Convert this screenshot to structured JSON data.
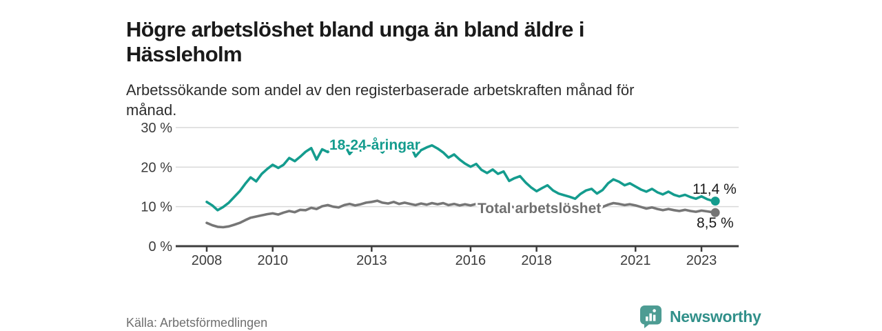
{
  "header": {
    "title": "Högre arbetslöshet bland unga än bland äldre i Hässleholm",
    "subtitle": "Arbetssökande som andel av den registerbaserade arbetskraften månad för månad."
  },
  "footer": {
    "source": "Källa: Arbetsförmedlingen"
  },
  "brand": {
    "name": "Newsworthy",
    "icon": "newsworthy-speech-bubble-bar-chart-icon",
    "text_color": "#31908a",
    "icon_color": "#4d9c93"
  },
  "chart_data": {
    "type": "line",
    "title": "Högre arbetslöshet bland unga än bland äldre i Hässleholm",
    "subtitle": "Arbetssökande som andel av den registerbaserade arbetskraften månad för månad.",
    "xlabel": "",
    "ylabel": "",
    "ylim": [
      0,
      30
    ],
    "xlim": [
      2007.1,
      2024.1
    ],
    "grid": "horizontal",
    "grid_color": "#d9d9d9",
    "axis_color": "#3d3d3d",
    "y_ticks": [
      {
        "label": "30 %",
        "value": 30
      },
      {
        "label": "20 %",
        "value": 20
      },
      {
        "label": "10 %",
        "value": 10
      },
      {
        "label": "0 %",
        "value": 0
      }
    ],
    "x_ticks": [
      {
        "label": "2008",
        "value": 2008
      },
      {
        "label": "2010",
        "value": 2010
      },
      {
        "label": "2013",
        "value": 2013
      },
      {
        "label": "2016",
        "value": 2016
      },
      {
        "label": "2018",
        "value": 2018
      },
      {
        "label": "2021",
        "value": 2021
      },
      {
        "label": "2023",
        "value": 2023
      }
    ],
    "legend_position": "inline-labels-on-lines",
    "series": [
      {
        "name": "18-24-åringar",
        "color": "#149c8e",
        "end_label": "11,4 %",
        "end_value": 11.4,
        "points": [
          [
            2008,
            11.2
          ],
          [
            2008.17,
            10.3
          ],
          [
            2008.33,
            9.1
          ],
          [
            2008.5,
            9.9
          ],
          [
            2008.67,
            11
          ],
          [
            2008.83,
            12.4
          ],
          [
            2009,
            13.9
          ],
          [
            2009.17,
            15.8
          ],
          [
            2009.33,
            17.4
          ],
          [
            2009.5,
            16.4
          ],
          [
            2009.67,
            18.3
          ],
          [
            2009.83,
            19.5
          ],
          [
            2010,
            20.6
          ],
          [
            2010.17,
            19.8
          ],
          [
            2010.33,
            20.6
          ],
          [
            2010.5,
            22.3
          ],
          [
            2010.67,
            21.5
          ],
          [
            2010.83,
            22.6
          ],
          [
            2011,
            23.9
          ],
          [
            2011.17,
            24.8
          ],
          [
            2011.33,
            21.9
          ],
          [
            2011.5,
            24.5
          ],
          [
            2011.67,
            23.8
          ],
          [
            2011.83,
            25.3
          ],
          [
            2012,
            25.1
          ],
          [
            2012.17,
            25.9
          ],
          [
            2012.33,
            23.3
          ],
          [
            2012.5,
            24.9
          ],
          [
            2012.67,
            24.2
          ],
          [
            2012.83,
            25.3
          ],
          [
            2013,
            26
          ],
          [
            2013.17,
            24.9
          ],
          [
            2013.33,
            23.7
          ],
          [
            2013.5,
            25.3
          ],
          [
            2013.67,
            24.5
          ],
          [
            2013.83,
            25.4
          ],
          [
            2014,
            24.8
          ],
          [
            2014.17,
            25.6
          ],
          [
            2014.33,
            22.7
          ],
          [
            2014.5,
            24.3
          ],
          [
            2014.67,
            25
          ],
          [
            2014.83,
            25.5
          ],
          [
            2015,
            24.7
          ],
          [
            2015.17,
            23.7
          ],
          [
            2015.33,
            22.4
          ],
          [
            2015.5,
            23.2
          ],
          [
            2015.67,
            21.9
          ],
          [
            2015.83,
            20.9
          ],
          [
            2016,
            20.1
          ],
          [
            2016.17,
            20.8
          ],
          [
            2016.33,
            19.3
          ],
          [
            2016.5,
            18.5
          ],
          [
            2016.67,
            19.4
          ],
          [
            2016.83,
            18.3
          ],
          [
            2017,
            18.9
          ],
          [
            2017.17,
            16.5
          ],
          [
            2017.33,
            17.2
          ],
          [
            2017.5,
            17.7
          ],
          [
            2017.67,
            16.1
          ],
          [
            2017.83,
            14.9
          ],
          [
            2018,
            13.9
          ],
          [
            2018.17,
            14.7
          ],
          [
            2018.33,
            15.4
          ],
          [
            2018.5,
            14.1
          ],
          [
            2018.67,
            13.3
          ],
          [
            2018.83,
            12.9
          ],
          [
            2019,
            12.5
          ],
          [
            2019.17,
            12
          ],
          [
            2019.33,
            13.2
          ],
          [
            2019.5,
            14.1
          ],
          [
            2019.67,
            14.5
          ],
          [
            2019.83,
            13.3
          ],
          [
            2020,
            14.2
          ],
          [
            2020.17,
            15.9
          ],
          [
            2020.33,
            16.9
          ],
          [
            2020.5,
            16.3
          ],
          [
            2020.67,
            15.4
          ],
          [
            2020.83,
            15.9
          ],
          [
            2021,
            15.1
          ],
          [
            2021.17,
            14.3
          ],
          [
            2021.33,
            13.8
          ],
          [
            2021.5,
            14.5
          ],
          [
            2021.67,
            13.6
          ],
          [
            2021.83,
            13.1
          ],
          [
            2022,
            13.8
          ],
          [
            2022.17,
            13
          ],
          [
            2022.33,
            12.6
          ],
          [
            2022.5,
            13
          ],
          [
            2022.67,
            12.4
          ],
          [
            2022.83,
            12
          ],
          [
            2023,
            12.6
          ],
          [
            2023.17,
            11.9
          ],
          [
            2023.33,
            11.5
          ],
          [
            2023.42,
            11.4
          ]
        ]
      },
      {
        "name": "Total arbetslöshet",
        "color": "#767676",
        "end_label": "8,5 %",
        "end_value": 8.5,
        "points": [
          [
            2008,
            5.9
          ],
          [
            2008.17,
            5.3
          ],
          [
            2008.33,
            4.9
          ],
          [
            2008.5,
            4.8
          ],
          [
            2008.67,
            5
          ],
          [
            2008.83,
            5.4
          ],
          [
            2009,
            5.9
          ],
          [
            2009.17,
            6.6
          ],
          [
            2009.33,
            7.2
          ],
          [
            2009.5,
            7.5
          ],
          [
            2009.67,
            7.8
          ],
          [
            2009.83,
            8.1
          ],
          [
            2010,
            8.3
          ],
          [
            2010.17,
            8
          ],
          [
            2010.33,
            8.5
          ],
          [
            2010.5,
            8.9
          ],
          [
            2010.67,
            8.6
          ],
          [
            2010.83,
            9.2
          ],
          [
            2011,
            9.1
          ],
          [
            2011.17,
            9.7
          ],
          [
            2011.33,
            9.4
          ],
          [
            2011.5,
            10.1
          ],
          [
            2011.67,
            10.4
          ],
          [
            2011.83,
            10
          ],
          [
            2012,
            9.8
          ],
          [
            2012.17,
            10.4
          ],
          [
            2012.33,
            10.7
          ],
          [
            2012.5,
            10.3
          ],
          [
            2012.67,
            10.6
          ],
          [
            2012.83,
            11
          ],
          [
            2013,
            11.2
          ],
          [
            2013.17,
            11.5
          ],
          [
            2013.33,
            11
          ],
          [
            2013.5,
            10.8
          ],
          [
            2013.67,
            11.2
          ],
          [
            2013.83,
            10.7
          ],
          [
            2014,
            11
          ],
          [
            2014.17,
            10.7
          ],
          [
            2014.33,
            10.4
          ],
          [
            2014.5,
            10.8
          ],
          [
            2014.67,
            10.5
          ],
          [
            2014.83,
            10.9
          ],
          [
            2015,
            10.6
          ],
          [
            2015.17,
            10.9
          ],
          [
            2015.33,
            10.4
          ],
          [
            2015.5,
            10.7
          ],
          [
            2015.67,
            10.3
          ],
          [
            2015.83,
            10.6
          ],
          [
            2016,
            10.3
          ],
          [
            2016.17,
            10.7
          ],
          [
            2016.33,
            10.2
          ],
          [
            2016.5,
            10.5
          ],
          [
            2016.67,
            10.1
          ],
          [
            2016.83,
            10.3
          ],
          [
            2017,
            10
          ],
          [
            2017.17,
            10.2
          ],
          [
            2017.33,
            9.8
          ],
          [
            2017.5,
            10
          ],
          [
            2017.67,
            9.6
          ],
          [
            2017.83,
            9.4
          ],
          [
            2018,
            9.6
          ],
          [
            2018.17,
            9.3
          ],
          [
            2018.33,
            9.5
          ],
          [
            2018.5,
            9.2
          ],
          [
            2018.67,
            9
          ],
          [
            2018.83,
            9.3
          ],
          [
            2019,
            9.1
          ],
          [
            2019.17,
            8.9
          ],
          [
            2019.33,
            9.2
          ],
          [
            2019.5,
            9.5
          ],
          [
            2019.67,
            9.3
          ],
          [
            2019.83,
            9.6
          ],
          [
            2020,
            9.9
          ],
          [
            2020.17,
            10.5
          ],
          [
            2020.33,
            10.9
          ],
          [
            2020.5,
            10.7
          ],
          [
            2020.67,
            10.4
          ],
          [
            2020.83,
            10.6
          ],
          [
            2021,
            10.3
          ],
          [
            2021.17,
            9.9
          ],
          [
            2021.33,
            9.5
          ],
          [
            2021.5,
            9.8
          ],
          [
            2021.67,
            9.4
          ],
          [
            2021.83,
            9.1
          ],
          [
            2022,
            9.4
          ],
          [
            2022.17,
            9.1
          ],
          [
            2022.33,
            8.9
          ],
          [
            2022.5,
            9.2
          ],
          [
            2022.67,
            8.9
          ],
          [
            2022.83,
            8.7
          ],
          [
            2023,
            9
          ],
          [
            2023.17,
            8.8
          ],
          [
            2023.33,
            8.6
          ],
          [
            2023.42,
            8.5
          ]
        ]
      }
    ]
  }
}
